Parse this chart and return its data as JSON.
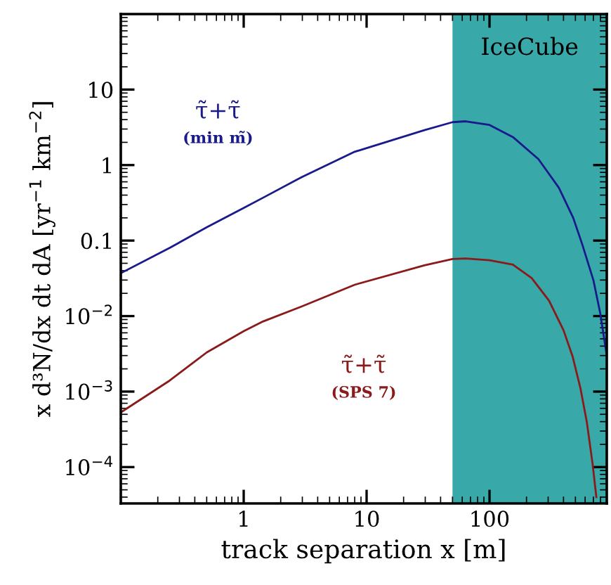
{
  "chart_data": {
    "type": "line",
    "xlabel": "track separation x [m]",
    "ylabel": "x d³N/dx dt dA [yr$^{−1}$ km$^{−2}$]",
    "log": "xy",
    "xlim": [
      0.1,
      900
    ],
    "xticks": [
      1,
      10,
      100
    ],
    "ylim": [
      3.3e-05,
      100
    ],
    "yticks": [
      {
        "value": 0.0001,
        "label": "10$^{−4}$"
      },
      {
        "value": 0.001,
        "label": "10$^{−3}$"
      },
      {
        "value": 0.01,
        "label": "10$^{−2}$"
      },
      0.1,
      1,
      10
    ],
    "grid": false,
    "legend": false,
    "bands": [
      {
        "axis": "x",
        "from": 50,
        "to": 900,
        "label": "IceCube",
        "color": "#38a8a8"
      }
    ],
    "series": [
      {
        "name": "τ̃+τ̃\n(min m̃)",
        "color": "#1a1a8c",
        "x": [
          0.1,
          0.25,
          0.5,
          1,
          1.44,
          3,
          8,
          29.5,
          50,
          64,
          100,
          155,
          250,
          367,
          480,
          571,
          700,
          795,
          900
        ],
        "values": [
          0.037,
          0.08,
          0.15,
          0.27,
          0.37,
          0.7,
          1.5,
          2.9,
          3.7,
          3.8,
          3.4,
          2.35,
          1.2,
          0.5,
          0.2,
          0.087,
          0.03,
          0.011,
          0.003
        ]
      },
      {
        "name": "τ̃+τ̃\n(SPS 7)",
        "color": "#8b1a1a",
        "x": [
          0.1,
          0.25,
          0.5,
          1,
          1.44,
          3,
          8,
          29.5,
          50,
          64,
          100,
          155,
          220,
          305,
          400,
          475,
          550,
          620,
          690,
          740
        ],
        "values": [
          0.00053,
          0.0014,
          0.0033,
          0.0063,
          0.0085,
          0.0135,
          0.026,
          0.047,
          0.057,
          0.058,
          0.055,
          0.048,
          0.032,
          0.016,
          0.0065,
          0.0029,
          0.0011,
          0.00039,
          0.00011,
          4e-05
        ]
      }
    ]
  }
}
